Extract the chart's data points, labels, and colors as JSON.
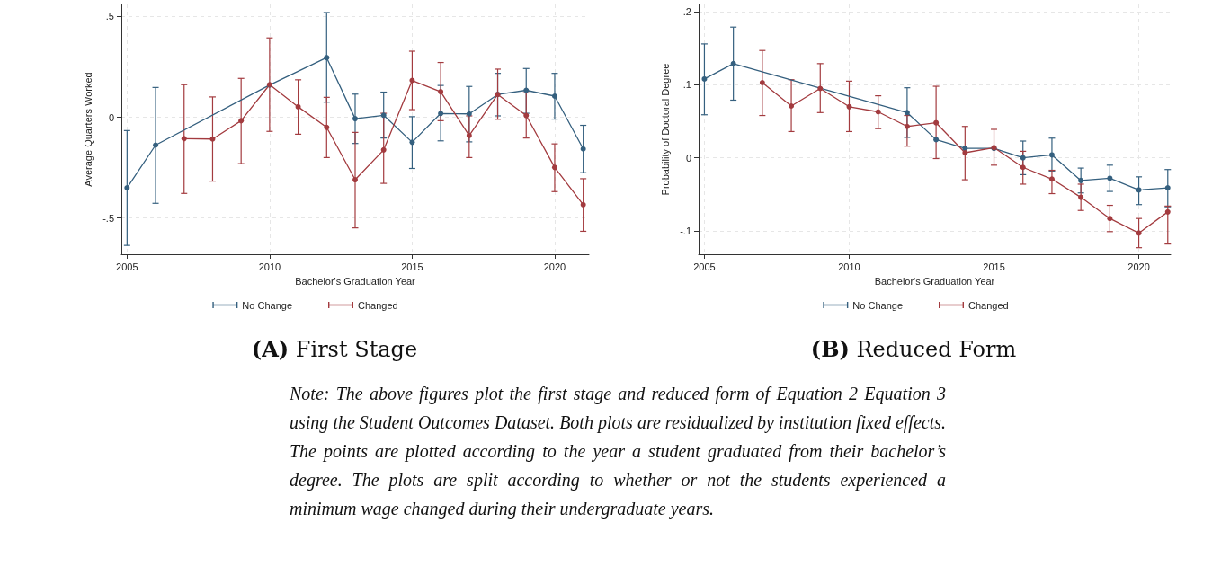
{
  "chart_data": [
    {
      "type": "line",
      "title": "(A) First Stage",
      "xlabel": "Bachelor's Graduation Year",
      "ylabel": "Average Quarters Worked",
      "xlim": [
        2004.8,
        2021.2
      ],
      "ylim": [
        -0.68,
        0.56
      ],
      "xticks": [
        2005,
        2010,
        2015,
        2020
      ],
      "yticks": [
        {
          "value": -0.5,
          "label": "-.5"
        },
        0,
        {
          "value": 0.5,
          "label": ".5"
        }
      ],
      "grid": true,
      "legend": "bottom",
      "marker": "circle",
      "line_style": "solid",
      "series": [
        {
          "name": "No Change",
          "color": "#35607f",
          "x": [
            2005,
            2006,
            2010,
            2012,
            2013,
            2014,
            2015,
            2016,
            2017,
            2018,
            2019,
            2020,
            2021
          ],
          "values": [
            -0.35,
            -0.138,
            0.16,
            0.296,
            -0.007,
            0.01,
            -0.124,
            0.019,
            0.017,
            0.113,
            0.134,
            0.105,
            -0.157
          ],
          "errors": [
            [
              -0.636,
              -0.066
            ],
            [
              -0.427,
              0.148
            ],
            null,
            [
              0.075,
              0.52
            ],
            [
              -0.13,
              0.115
            ],
            [
              -0.103,
              0.125
            ],
            [
              -0.254,
              0.003
            ],
            [
              -0.117,
              0.158
            ],
            [
              -0.122,
              0.153
            ],
            [
              0.007,
              0.218
            ],
            [
              0.02,
              0.242
            ],
            [
              -0.009,
              0.218
            ],
            [
              -0.275,
              -0.04
            ]
          ]
        },
        {
          "name": "Changed",
          "color": "#a33b3f",
          "x": [
            2007,
            2008,
            2009,
            2010,
            2011,
            2012,
            2013,
            2014,
            2015,
            2016,
            2017,
            2018,
            2019,
            2020,
            2021
          ],
          "values": [
            -0.106,
            -0.108,
            -0.017,
            0.162,
            0.052,
            -0.05,
            -0.31,
            -0.162,
            0.183,
            0.127,
            -0.091,
            0.113,
            0.009,
            -0.249,
            -0.434
          ],
          "errors": [
            [
              -0.378,
              0.162
            ],
            [
              -0.317,
              0.101
            ],
            [
              -0.23,
              0.193
            ],
            [
              -0.07,
              0.394
            ],
            [
              -0.084,
              0.186
            ],
            [
              -0.2,
              0.099
            ],
            [
              -0.549,
              -0.075
            ],
            [
              -0.328,
              0.02
            ],
            [
              0.038,
              0.328
            ],
            [
              -0.017,
              0.272
            ],
            [
              -0.2,
              0.007
            ],
            [
              -0.01,
              0.239
            ],
            [
              -0.103,
              0.122
            ],
            [
              -0.369,
              -0.132
            ],
            [
              -0.566,
              -0.305
            ]
          ]
        }
      ],
      "annotations": [
        "Note: The above figures plot the first stage and reduced form of Equation 2 Equation 3 using the Student Outcomes Dataset. Both plots are residualized by institution fixed effects. The points are plotted according to the year a student graduated from their bachelor’s degree. The plots are split according to whether or not the students experienced a minimum wage changed during their undergraduate years."
      ]
    },
    {
      "type": "line",
      "title": "(B) Reduced Form",
      "xlabel": "Bachelor's Graduation Year",
      "ylabel": "Probability of Doctoral Degree",
      "xlim": [
        2004.8,
        2021.1
      ],
      "ylim": [
        -0.132,
        0.21
      ],
      "xticks": [
        2005,
        2010,
        2015,
        2020
      ],
      "yticks": [
        {
          "value": -0.1,
          "label": "-.1"
        },
        0,
        {
          "value": 0.1,
          "label": ".1"
        },
        {
          "value": 0.2,
          "label": ".2"
        }
      ],
      "grid": true,
      "legend": "bottom",
      "marker": "circle",
      "line_style": "solid",
      "series": [
        {
          "name": "No Change",
          "color": "#35607f",
          "x": [
            2005,
            2006,
            2012,
            2013,
            2014,
            2015,
            2016,
            2017,
            2018,
            2019,
            2020,
            2021
          ],
          "values": [
            0.108,
            0.129,
            0.062,
            0.025,
            0.013,
            0.013,
            0,
            0.004,
            -0.031,
            -0.028,
            -0.044,
            -0.041
          ],
          "errors": [
            [
              0.059,
              0.156
            ],
            [
              0.079,
              0.179
            ],
            [
              0.028,
              0.096
            ],
            null,
            null,
            null,
            [
              -0.023,
              0.023
            ],
            [
              -0.018,
              0.027
            ],
            [
              -0.048,
              -0.014
            ],
            [
              -0.046,
              -0.01
            ],
            [
              -0.064,
              -0.026
            ],
            [
              -0.067,
              -0.016
            ]
          ]
        },
        {
          "name": "Changed",
          "color": "#a33b3f",
          "x": [
            2007,
            2008,
            2009,
            2010,
            2011,
            2012,
            2013,
            2014,
            2015,
            2016,
            2017,
            2018,
            2019,
            2020,
            2021
          ],
          "values": [
            0.103,
            0.071,
            0.095,
            0.07,
            0.063,
            0.043,
            0.048,
            0.007,
            0.014,
            -0.013,
            -0.029,
            -0.054,
            -0.083,
            -0.103,
            -0.074
          ],
          "errors": [
            [
              0.058,
              0.147
            ],
            [
              0.036,
              0.107
            ],
            [
              0.062,
              0.129
            ],
            [
              0.036,
              0.105
            ],
            [
              0.04,
              0.085
            ],
            [
              0.016,
              0.058
            ],
            [
              -0.001,
              0.098
            ],
            [
              -0.03,
              0.043
            ],
            [
              -0.01,
              0.039
            ],
            [
              -0.036,
              0.009
            ],
            [
              -0.049,
              -0.017
            ],
            [
              -0.072,
              -0.036
            ],
            [
              -0.101,
              -0.065
            ],
            [
              -0.123,
              -0.083
            ],
            [
              -0.118,
              -0.066
            ]
          ]
        }
      ]
    }
  ]
}
